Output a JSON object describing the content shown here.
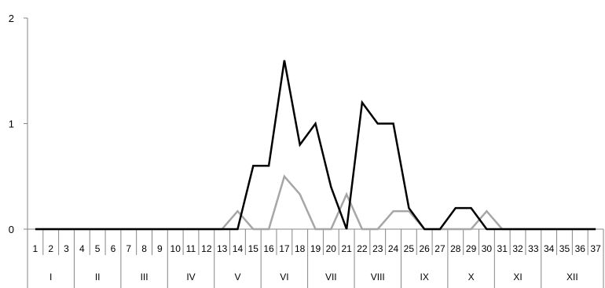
{
  "chart_data": {
    "type": "line",
    "title": "",
    "xlabel": "",
    "ylabel": "",
    "x": [
      1,
      2,
      3,
      4,
      5,
      6,
      7,
      8,
      9,
      10,
      11,
      12,
      13,
      14,
      15,
      16,
      17,
      18,
      19,
      20,
      21,
      22,
      23,
      24,
      25,
      26,
      27,
      28,
      29,
      30,
      31,
      32,
      33,
      34,
      35,
      36,
      37
    ],
    "x_labels": [
      "1",
      "2",
      "3",
      "4",
      "5",
      "6",
      "7",
      "8",
      "9",
      "10",
      "11",
      "12",
      "13",
      "14",
      "15",
      "16",
      "17",
      "18",
      "19",
      "20",
      "21",
      "22",
      "23",
      "24",
      "25",
      "26",
      "27",
      "28",
      "29",
      "30",
      "31",
      "32",
      "33",
      "34",
      "35",
      "36",
      "37"
    ],
    "ylim": [
      0,
      2
    ],
    "yticks": [
      "0",
      "1",
      "2"
    ],
    "grid": false,
    "legend": "none",
    "groups": [
      {
        "label": "I",
        "span": 3
      },
      {
        "label": "II",
        "span": 3
      },
      {
        "label": "III",
        "span": 3
      },
      {
        "label": "IV",
        "span": 3
      },
      {
        "label": "V",
        "span": 3
      },
      {
        "label": "VI",
        "span": 3
      },
      {
        "label": "VII",
        "span": 3
      },
      {
        "label": "VIII",
        "span": 3
      },
      {
        "label": "IX",
        "span": 3
      },
      {
        "label": "X",
        "span": 3
      },
      {
        "label": "XI",
        "span": 3
      },
      {
        "label": "XII",
        "span": 4
      }
    ],
    "series": [
      {
        "color": "#000000",
        "values": [
          0,
          0,
          0,
          0,
          0,
          0,
          0,
          0,
          0,
          0,
          0,
          0,
          0,
          0,
          0.6,
          0.6,
          1.6,
          0.8,
          1.0,
          0.4,
          0,
          1.2,
          1.0,
          1.0,
          0.2,
          0,
          0,
          0.2,
          0.2,
          0,
          0,
          0,
          0,
          0,
          0,
          0,
          0
        ]
      },
      {
        "color": "#a6a6a6",
        "values": [
          0,
          0,
          0,
          0,
          0,
          0,
          0,
          0,
          0,
          0,
          0,
          0,
          0,
          0.17,
          0,
          0,
          0.5,
          0.33,
          0,
          0,
          0.33,
          0,
          0,
          0.17,
          0.17,
          0,
          0,
          0,
          0,
          0.17,
          0,
          0,
          0,
          0,
          0,
          0,
          0
        ]
      }
    ]
  }
}
